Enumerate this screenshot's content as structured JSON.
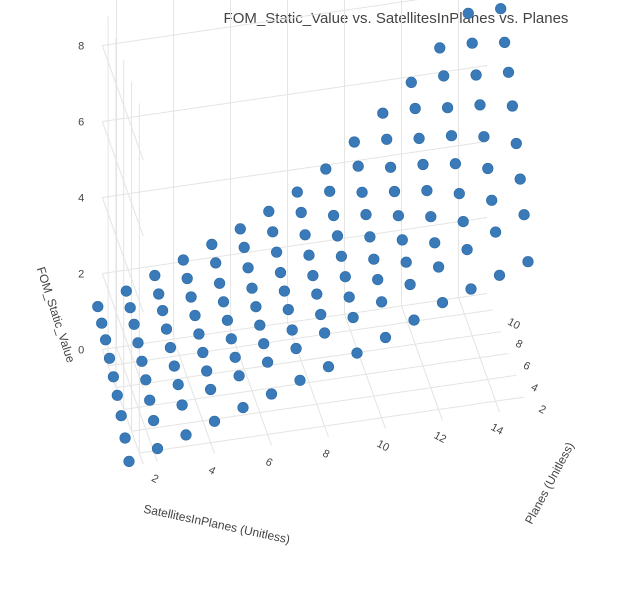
{
  "chart_data": {
    "type": "scatter3d",
    "title": "FOM_Static_Value vs. SatellitesInPlanes vs. Planes",
    "x_axis": {
      "label": "SatellitesInPlanes (Unitless)",
      "ticks": [
        "2",
        "4",
        "6",
        "8",
        "10",
        "12",
        "14"
      ],
      "range": [
        1.5,
        15
      ]
    },
    "y_axis": {
      "label": "Planes (Unitless)",
      "ticks": [
        "2",
        "4",
        "6",
        "8",
        "10"
      ],
      "range": [
        1,
        11.5
      ]
    },
    "z_axis": {
      "label": "FOM_Static_Value",
      "ticks": [
        "0",
        "2",
        "4",
        "6",
        "8"
      ],
      "range": [
        0,
        9
      ]
    },
    "marker_color": "#3a7ab8",
    "grid": true,
    "points": [
      [
        1,
        1,
        0.12
      ],
      [
        2,
        1,
        0.35
      ],
      [
        3,
        1,
        0.6
      ],
      [
        4,
        1,
        0.85
      ],
      [
        5,
        1,
        1.1
      ],
      [
        6,
        1,
        1.35
      ],
      [
        7,
        1,
        1.6
      ],
      [
        8,
        1,
        1.85
      ],
      [
        9,
        1,
        2.1
      ],
      [
        10,
        1,
        2.4
      ],
      [
        11,
        1,
        2.75
      ],
      [
        12,
        1,
        3.1
      ],
      [
        13,
        1,
        3.35
      ],
      [
        14,
        1,
        3.6
      ],
      [
        15,
        1,
        3.85
      ],
      [
        1,
        2,
        0.45
      ],
      [
        2,
        2,
        0.8
      ],
      [
        3,
        2,
        1.1
      ],
      [
        4,
        2,
        1.4
      ],
      [
        5,
        2,
        1.65
      ],
      [
        6,
        2,
        1.9
      ],
      [
        7,
        2,
        2.15
      ],
      [
        8,
        2,
        2.45
      ],
      [
        9,
        2,
        2.75
      ],
      [
        10,
        2,
        3.05
      ],
      [
        11,
        2,
        3.4
      ],
      [
        12,
        2,
        3.75
      ],
      [
        13,
        2,
        4.1
      ],
      [
        14,
        2,
        4.45
      ],
      [
        15,
        2,
        4.8
      ],
      [
        1,
        3,
        0.75
      ],
      [
        2,
        3,
        1.05
      ],
      [
        3,
        3,
        1.35
      ],
      [
        4,
        3,
        1.6
      ],
      [
        5,
        3,
        1.85
      ],
      [
        6,
        3,
        2.1
      ],
      [
        7,
        3,
        2.35
      ],
      [
        8,
        3,
        2.65
      ],
      [
        9,
        3,
        3.0
      ],
      [
        10,
        3,
        3.35
      ],
      [
        11,
        3,
        3.7
      ],
      [
        12,
        3,
        4.1
      ],
      [
        13,
        3,
        4.55
      ],
      [
        14,
        3,
        5.0
      ],
      [
        15,
        3,
        5.45
      ],
      [
        1,
        4,
        1.0
      ],
      [
        2,
        4,
        1.3
      ],
      [
        3,
        4,
        1.55
      ],
      [
        4,
        4,
        1.8
      ],
      [
        5,
        4,
        2.05
      ],
      [
        6,
        4,
        2.3
      ],
      [
        7,
        4,
        2.6
      ],
      [
        8,
        4,
        2.9
      ],
      [
        9,
        4,
        3.25
      ],
      [
        10,
        4,
        3.6
      ],
      [
        11,
        4,
        4.0
      ],
      [
        12,
        4,
        4.5
      ],
      [
        13,
        4,
        5.0
      ],
      [
        14,
        4,
        5.55
      ],
      [
        15,
        4,
        6.1
      ],
      [
        1,
        5,
        1.2
      ],
      [
        2,
        5,
        1.5
      ],
      [
        3,
        5,
        1.75
      ],
      [
        4,
        5,
        2.0
      ],
      [
        5,
        5,
        2.25
      ],
      [
        6,
        5,
        2.5
      ],
      [
        7,
        5,
        2.8
      ],
      [
        8,
        5,
        3.1
      ],
      [
        9,
        5,
        3.5
      ],
      [
        10,
        5,
        3.9
      ],
      [
        11,
        5,
        4.35
      ],
      [
        12,
        5,
        4.9
      ],
      [
        13,
        5,
        5.5
      ],
      [
        14,
        5,
        6.1
      ],
      [
        15,
        5,
        6.8
      ],
      [
        1,
        6,
        1.4
      ],
      [
        2,
        6,
        1.7
      ],
      [
        3,
        6,
        1.95
      ],
      [
        4,
        6,
        2.2
      ],
      [
        5,
        6,
        2.45
      ],
      [
        6,
        6,
        2.7
      ],
      [
        7,
        6,
        3.0
      ],
      [
        8,
        6,
        3.35
      ],
      [
        9,
        6,
        3.75
      ],
      [
        10,
        6,
        4.2
      ],
      [
        11,
        6,
        4.7
      ],
      [
        12,
        6,
        5.3
      ],
      [
        13,
        6,
        5.95
      ],
      [
        14,
        6,
        6.65
      ],
      [
        15,
        6,
        7.4
      ],
      [
        1,
        7,
        1.6
      ],
      [
        2,
        7,
        1.9
      ],
      [
        3,
        7,
        2.15
      ],
      [
        4,
        7,
        2.4
      ],
      [
        5,
        7,
        2.65
      ],
      [
        6,
        7,
        2.95
      ],
      [
        7,
        7,
        3.25
      ],
      [
        8,
        7,
        3.6
      ],
      [
        9,
        7,
        4.0
      ],
      [
        10,
        7,
        4.5
      ],
      [
        11,
        7,
        5.05
      ],
      [
        12,
        7,
        5.7
      ],
      [
        13,
        7,
        6.4
      ],
      [
        14,
        7,
        7.15
      ],
      [
        15,
        7,
        7.9
      ],
      [
        1,
        8,
        1.75
      ],
      [
        2,
        8,
        2.05
      ],
      [
        3,
        8,
        2.3
      ],
      [
        4,
        8,
        2.6
      ],
      [
        5,
        8,
        2.9
      ],
      [
        6,
        8,
        3.2
      ],
      [
        7,
        8,
        3.5
      ],
      [
        8,
        8,
        3.9
      ],
      [
        9,
        8,
        4.35
      ],
      [
        10,
        8,
        4.9
      ],
      [
        11,
        8,
        5.5
      ],
      [
        12,
        8,
        6.2
      ],
      [
        13,
        8,
        6.95
      ],
      [
        14,
        8,
        7.7
      ],
      [
        15,
        8,
        8.5
      ],
      [
        1,
        9,
        1.9
      ],
      [
        2,
        9,
        2.2
      ],
      [
        3,
        9,
        2.5
      ],
      [
        4,
        9,
        2.8
      ],
      [
        5,
        9,
        3.1
      ],
      [
        6,
        9,
        3.4
      ],
      [
        7,
        9,
        3.75
      ],
      [
        8,
        9,
        4.15
      ],
      [
        9,
        9,
        4.65
      ],
      [
        10,
        9,
        5.25
      ],
      [
        11,
        9,
        5.9
      ],
      [
        12,
        9,
        6.6
      ],
      [
        13,
        9,
        7.4
      ],
      [
        14,
        9,
        8.2
      ],
      [
        15,
        9,
        9.0
      ]
    ]
  }
}
